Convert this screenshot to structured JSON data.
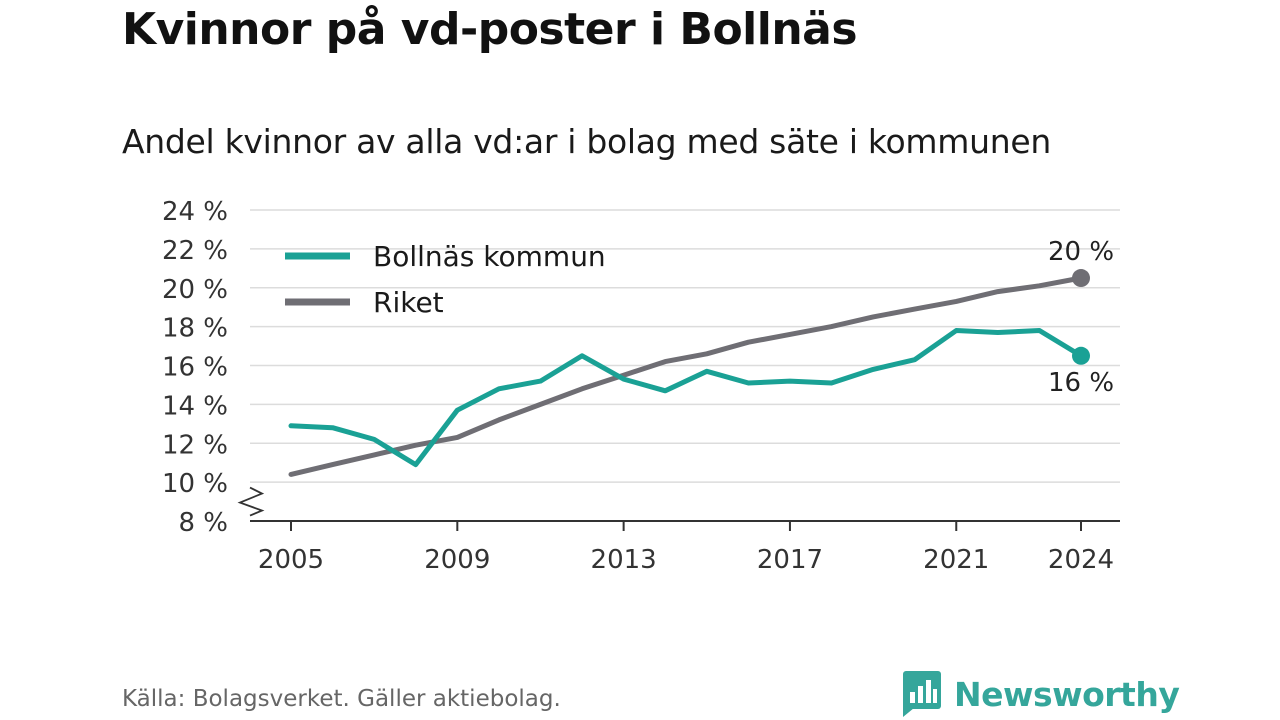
{
  "title": "Kvinnor på vd-poster i Bollnäs",
  "subtitle": "Andel kvinnor av alla vd:ar i bolag med säte i kommunen",
  "source": "Källa: Bolagsverket. Gäller aktiebolag.",
  "brand": {
    "name": "Newsworthy",
    "icon": "bar-chart-speech-bubble-icon",
    "color": "#35a69b"
  },
  "chart_data": {
    "type": "line",
    "title": "Kvinnor på vd-poster i Bollnäs",
    "subtitle": "Andel kvinnor av alla vd:ar i bolag med säte i kommunen",
    "xlabel": "",
    "ylabel": "",
    "ylim": [
      8,
      24
    ],
    "xlim": [
      2005,
      2024
    ],
    "axis_break": true,
    "grid": true,
    "legend_position": "top-left",
    "y_ticks": [
      "8 %",
      "10 %",
      "12 %",
      "14 %",
      "16 %",
      "18 %",
      "20 %",
      "22 %",
      "24 %"
    ],
    "y_tick_values": [
      8,
      10,
      12,
      14,
      16,
      18,
      20,
      22,
      24
    ],
    "x_ticks": [
      "2005",
      "2009",
      "2013",
      "2017",
      "2021",
      "2024"
    ],
    "x_tick_values": [
      2005,
      2009,
      2013,
      2017,
      2021,
      2024
    ],
    "x": [
      2005,
      2006,
      2007,
      2008,
      2009,
      2010,
      2011,
      2012,
      2013,
      2014,
      2015,
      2016,
      2017,
      2018,
      2019,
      2020,
      2021,
      2022,
      2023,
      2024
    ],
    "series": [
      {
        "name": "Bollnäs kommun",
        "color": "#1aa195",
        "values": [
          12.9,
          12.8,
          12.2,
          10.9,
          13.7,
          14.8,
          15.2,
          16.5,
          15.3,
          14.7,
          15.7,
          15.1,
          15.2,
          15.1,
          15.8,
          16.3,
          17.8,
          17.7,
          17.8,
          16.5
        ],
        "end_label": "16 %"
      },
      {
        "name": "Riket",
        "color": "#6f6e74",
        "values": [
          10.4,
          10.9,
          11.4,
          11.9,
          12.3,
          13.2,
          14.0,
          14.8,
          15.5,
          16.2,
          16.6,
          17.2,
          17.6,
          18.0,
          18.5,
          18.9,
          19.3,
          19.8,
          20.1,
          20.5
        ],
        "end_label": "20 %"
      }
    ]
  }
}
